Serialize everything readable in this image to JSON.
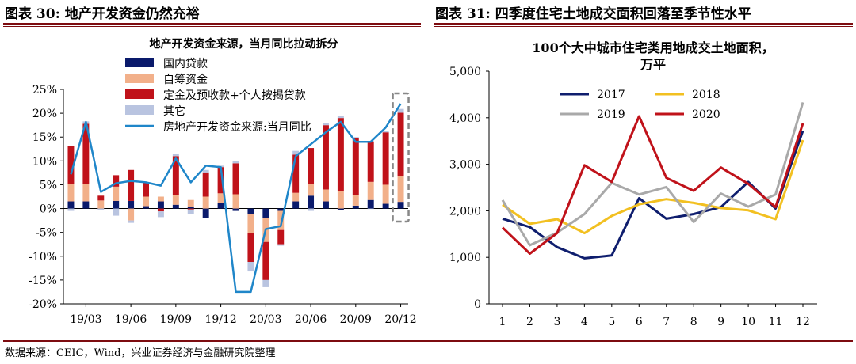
{
  "header": {
    "left_title": "图表 30:  地产开发资金仍然充裕",
    "right_title": "图表 31:  四季度住宅土地成交面积回落至季节性水平"
  },
  "footer": {
    "source": "数据来源：CEIC，Wind，兴业证券经济与金融研究院整理"
  },
  "chart_data": [
    {
      "type": "bar",
      "title": "地产开发资金来源，当月同比拉动拆分",
      "x_tick_labels": [
        "19/03",
        "19/06",
        "19/09",
        "19/12",
        "20/03",
        "20/06",
        "20/09",
        "20/12"
      ],
      "y_tick_labels": [
        "25%",
        "20%",
        "15%",
        "10%",
        "5%",
        "0%",
        "-5%",
        "-10%",
        "-15%",
        "-20%"
      ],
      "ylim": [
        -20,
        25
      ],
      "grid": false,
      "legend_placement": "top-left",
      "categories": [
        "2019-02",
        "2019-03",
        "2019-04",
        "2019-05",
        "2019-06",
        "2019-07",
        "2019-08",
        "2019-09",
        "2019-10",
        "2019-11",
        "2019-12",
        "2020-01",
        "2020-02",
        "2020-03",
        "2020-04",
        "2020-05",
        "2020-06",
        "2020-07",
        "2020-08",
        "2020-09",
        "2020-10",
        "2020-11",
        "2020-12"
      ],
      "stacked_series": [
        {
          "name": "国内贷款",
          "color": "#0a1a6b",
          "values": [
            1.5,
            1.5,
            0,
            1.6,
            1.6,
            0.5,
            1.5,
            0.8,
            0.4,
            -2.0,
            1.2,
            -0.5,
            -1.2,
            -2.0,
            -0.5,
            1.5,
            2.7,
            1.5,
            -0.4,
            0.6,
            1.8,
            1.0,
            1.4
          ]
        },
        {
          "name": "自筹资金",
          "color": "#f2b08a",
          "values": [
            3.7,
            3.7,
            1.7,
            3.0,
            -2.5,
            2.0,
            1.0,
            2.0,
            1.4,
            2.5,
            2.0,
            3.0,
            -4.0,
            -5.0,
            -4.0,
            1.8,
            2.5,
            2.5,
            3.6,
            2.2,
            3.8,
            4.0,
            5.5
          ]
        },
        {
          "name": "定金及预收款+个人按揭贷款",
          "color": "#c0121a",
          "values": [
            8.0,
            12.6,
            1.0,
            2.4,
            6.5,
            3.0,
            -0.6,
            8.2,
            -0.2,
            5.1,
            5.5,
            6.5,
            -6.0,
            -8.0,
            -3.0,
            8.0,
            7.5,
            13.5,
            15.4,
            12.0,
            8.5,
            11.0,
            13.2
          ]
        },
        {
          "name": "其它",
          "color": "#b9c4e0",
          "values": [
            -0.5,
            0.5,
            -0.4,
            -1.5,
            -0.5,
            0,
            -1.2,
            0.5,
            -1.0,
            0.5,
            0.3,
            0.5,
            -2.0,
            -1.5,
            -0.3,
            0.8,
            -0.5,
            0.5,
            0.5,
            0.2,
            -0.1,
            0.3,
            0.8
          ]
        }
      ],
      "line_series": {
        "name": "房地产开发资金来源:当月同比",
        "color": "#1f86c9",
        "values": [
          7.2,
          18.2,
          3.5,
          5.3,
          5.8,
          5.5,
          4.8,
          10.5,
          5.5,
          9.0,
          8.7,
          -17.5,
          -17.5,
          -4.3,
          -3.7,
          11.0,
          13.5,
          16.0,
          18.2,
          14.0,
          14.0,
          17.0,
          22.0
        ]
      },
      "highlight": "last bar (20/12), dashed box"
    },
    {
      "type": "line",
      "title": "100个大中城市住宅类用地成交土地面积，万平",
      "title_lines": [
        "100个大中城市住宅类用地成交土地面积，",
        "万平"
      ],
      "x": [
        1,
        2,
        3,
        4,
        5,
        6,
        7,
        8,
        9,
        10,
        11,
        12
      ],
      "y_tick_labels": [
        "5,000",
        "4,000",
        "3,000",
        "2,000",
        "1,000",
        "0"
      ],
      "ylim": [
        0,
        5000
      ],
      "grid": false,
      "legend_placement": "top-left",
      "series": [
        {
          "name": "2017",
          "color": "#0f1e6e",
          "values": [
            1830,
            1650,
            1220,
            980,
            1040,
            2270,
            1830,
            1930,
            2080,
            2620,
            2050,
            3720
          ]
        },
        {
          "name": "2018",
          "color": "#f2c021",
          "values": [
            2130,
            1720,
            1820,
            1520,
            1890,
            2140,
            2250,
            2170,
            2060,
            2010,
            1820,
            3520
          ]
        },
        {
          "name": "2019",
          "color": "#a9a9a9",
          "values": [
            2230,
            1260,
            1530,
            1930,
            2600,
            2350,
            2510,
            1760,
            2370,
            2090,
            2350,
            4330
          ]
        },
        {
          "name": "2020",
          "color": "#c0121a",
          "values": [
            1640,
            1080,
            1520,
            2980,
            2620,
            4030,
            2710,
            2430,
            2930,
            2580,
            2080,
            3880
          ]
        }
      ]
    }
  ]
}
